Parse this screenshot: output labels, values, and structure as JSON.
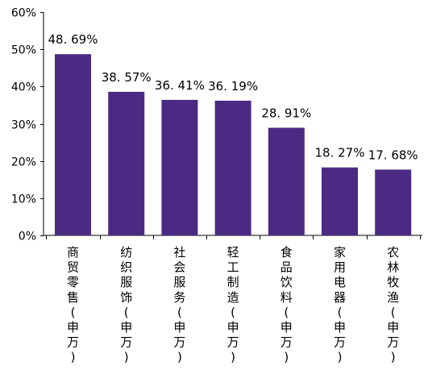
{
  "chart_data": {
    "type": "bar",
    "title": "",
    "xlabel": "",
    "ylabel": "",
    "categories": [
      "商贸零售(申万)",
      "纺织服饰(申万)",
      "社会服务(申万)",
      "轻工制造(申万)",
      "食品饮料(申万)",
      "家用电器(申万)",
      "农林牧渔(申万)"
    ],
    "values": [
      48.69,
      38.57,
      36.41,
      36.19,
      28.91,
      18.27,
      17.68
    ],
    "data_labels": [
      "48. 69%",
      "38. 57%",
      "36. 41%",
      "36. 19%",
      "28. 91%",
      "18. 27%",
      "17. 68%"
    ],
    "ylim": [
      0,
      60
    ],
    "yticks": [
      0,
      10,
      20,
      30,
      40,
      50,
      60
    ],
    "ytick_labels": [
      "0%",
      "10%",
      "20%",
      "30%",
      "40%",
      "50%",
      "60%"
    ],
    "bar_color": "#4b2a83",
    "grid": false,
    "legend": "none"
  }
}
